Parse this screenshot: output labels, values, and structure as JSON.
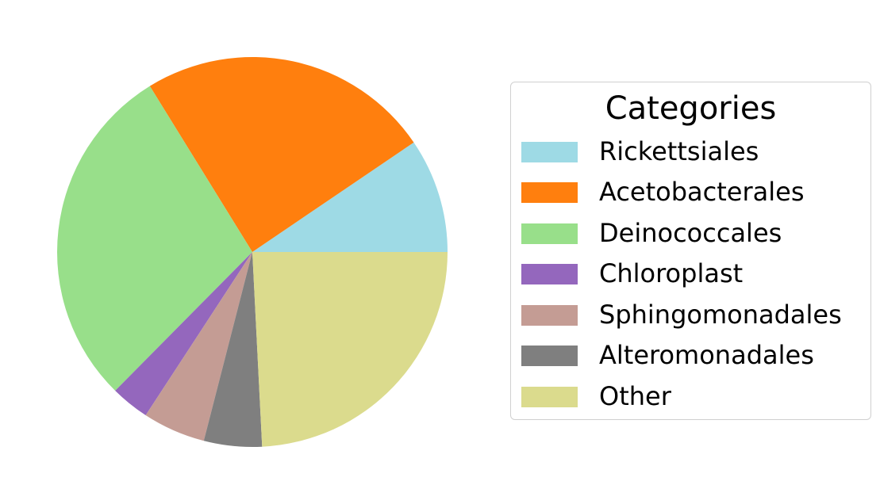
{
  "chart_data": {
    "type": "pie",
    "legend_title": "Categories",
    "legend_placement": "right",
    "start_angle_deg": 0,
    "direction": "counterclockwise",
    "slices": [
      {
        "label": "Rickettsiales",
        "value": 9.5,
        "color": "#9edae5"
      },
      {
        "label": "Acetobacterales",
        "value": 24.3,
        "color": "#ff7f0e"
      },
      {
        "label": "Deinococcales",
        "value": 28.8,
        "color": "#98df8a"
      },
      {
        "label": "Chloroplast",
        "value": 3.2,
        "color": "#9467bd"
      },
      {
        "label": "Sphingomonadales",
        "value": 5.2,
        "color": "#c49c94"
      },
      {
        "label": "Alteromonadales",
        "value": 4.8,
        "color": "#7f7f7f"
      },
      {
        "label": "Other",
        "value": 24.2,
        "color": "#dbdb8d"
      }
    ]
  }
}
